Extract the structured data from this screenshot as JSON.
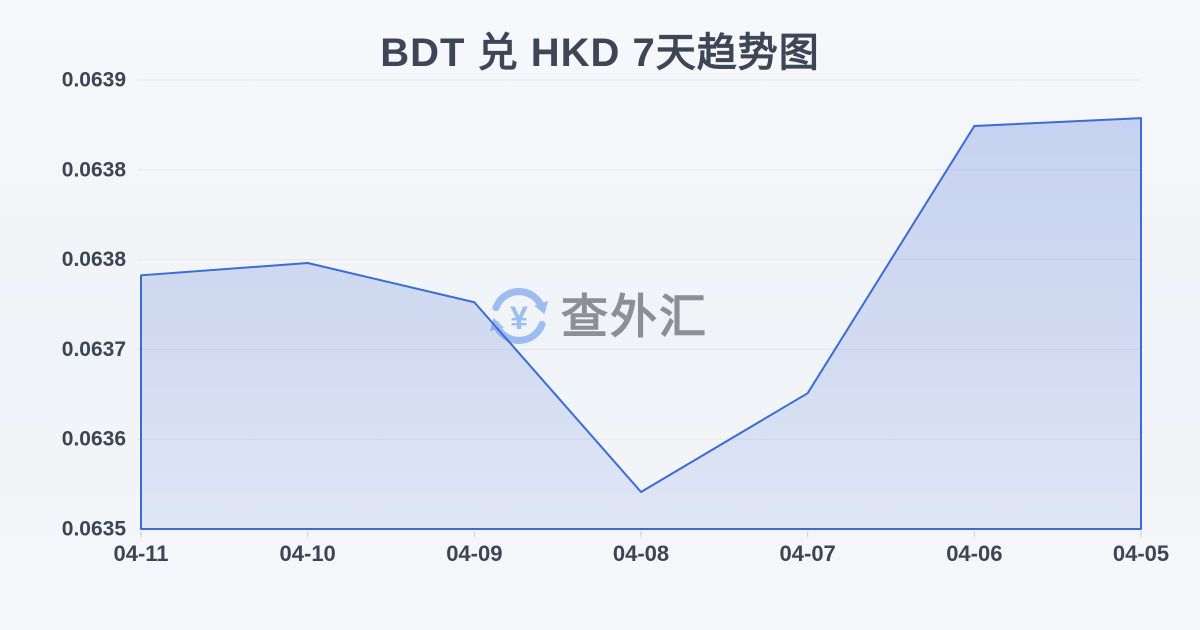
{
  "title": {
    "text": "BDT 兑 HKD 7天趋势图"
  },
  "watermark": {
    "symbol": "¥",
    "text": "查外汇",
    "icon": "currency-exchange-icon"
  },
  "colors": {
    "title": "#3c4657",
    "axis_label": "#3d4454",
    "line": "#3a6bd6",
    "fill_top": "rgba(92,126,217,0.30)",
    "fill_bottom": "rgba(92,126,217,0.13)",
    "gridline": "#e4e8ee",
    "tick": "#c9cfd8",
    "watermark_text": "#8c8f94",
    "watermark_icon": "#9dbcf0",
    "background_top": "#f7f8fa",
    "background_bottom": "#f5f7fa"
  },
  "chart_data": {
    "type": "area",
    "title": "BDT 兑 HKD 7天趋势图",
    "categories": [
      "04-11",
      "04-10",
      "04-09",
      "04-08",
      "04-07",
      "04-06",
      "04-05"
    ],
    "values": [
      0.063746,
      0.063757,
      0.063722,
      0.063553,
      0.063641,
      0.063879,
      0.063886
    ],
    "ylim": [
      0.06352,
      0.06392
    ],
    "y_tick_labels": [
      "0.0639",
      "0.0638",
      "0.0638",
      "0.0637",
      "0.0636",
      "0.0635"
    ],
    "xlabel": "",
    "ylabel": "",
    "grid": true,
    "legend": false
  }
}
